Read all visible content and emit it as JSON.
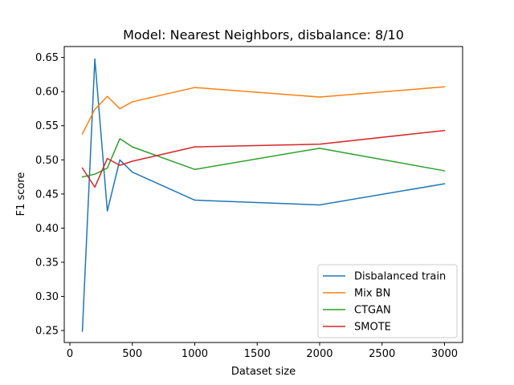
{
  "chart_data": {
    "type": "line",
    "title": "Model: Nearest Neighbors, disbalance: 8/10",
    "xlabel": "Dataset size",
    "ylabel": "F1 score",
    "xlim": [
      -45,
      3145
    ],
    "ylim": [
      0.2325,
      0.666
    ],
    "xticks": [
      0,
      500,
      1000,
      1500,
      2000,
      2500,
      3000
    ],
    "yticks": [
      0.25,
      0.3,
      0.35,
      0.4,
      0.45,
      0.5,
      0.55,
      0.6,
      0.65
    ],
    "xtick_labels": [
      "0",
      "500",
      "1000",
      "1500",
      "2000",
      "2500",
      "3000"
    ],
    "ytick_labels": [
      "0.25",
      "0.30",
      "0.35",
      "0.40",
      "0.45",
      "0.50",
      "0.55",
      "0.60",
      "0.65"
    ],
    "legend_position": "lower-right",
    "grid": false,
    "x": [
      100,
      200,
      300,
      400,
      500,
      1000,
      2000,
      3000
    ],
    "series": [
      {
        "name": "Disbalanced train",
        "color": "#1f77b4",
        "values": [
          0.249,
          0.648,
          0.425,
          0.5,
          0.482,
          0.441,
          0.434,
          0.465
        ]
      },
      {
        "name": "Mix BN",
        "color": "#ff7f0e",
        "values": [
          0.538,
          0.574,
          0.593,
          0.575,
          0.585,
          0.606,
          0.592,
          0.607
        ]
      },
      {
        "name": "CTGAN",
        "color": "#2ca02c",
        "values": [
          0.475,
          0.479,
          0.488,
          0.531,
          0.519,
          0.486,
          0.517,
          0.484
        ]
      },
      {
        "name": "SMOTE",
        "color": "#d62728",
        "values": [
          0.488,
          0.46,
          0.502,
          0.492,
          0.498,
          0.519,
          0.523,
          0.543
        ]
      }
    ]
  }
}
